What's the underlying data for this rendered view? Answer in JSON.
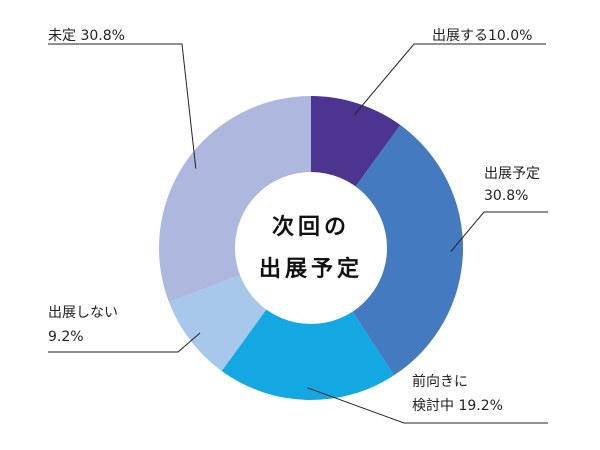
{
  "chart_data": {
    "type": "pie",
    "variant": "donut",
    "center_title_lines": [
      "次回の",
      "出展予定"
    ],
    "categories": [
      "出展する",
      "出展予定",
      "前向きに検討中",
      "出展しない",
      "未定"
    ],
    "values": [
      10.0,
      30.8,
      19.2,
      9.2,
      30.8
    ],
    "unit": "%",
    "label_lines": [
      [
        "出展する10.0%"
      ],
      [
        "出展予定",
        "30.8%"
      ],
      [
        "前向きに",
        "検討中 19.2%"
      ],
      [
        "出展しない",
        "9.2%"
      ],
      [
        "未定 30.8%"
      ]
    ],
    "colors": [
      "#4b3590",
      "#447ac0",
      "#13a8e2",
      "#a7c8ea",
      "#aeb8de"
    ],
    "start_angle_deg": 0,
    "direction": "clockwise",
    "legend": "none (callout labels with leader lines)"
  }
}
